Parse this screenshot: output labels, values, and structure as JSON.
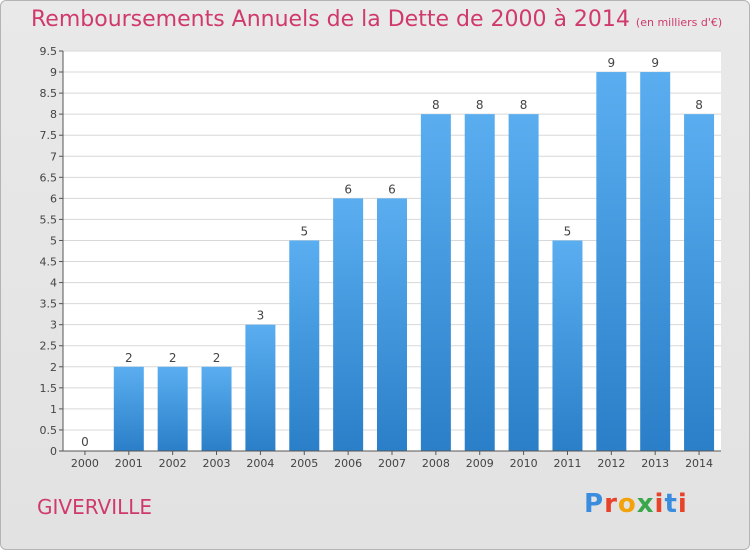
{
  "title": "Remboursements Annuels de la Dette de 2000 à 2014",
  "subtitle": "(en milliers d'€)",
  "commune": "GIVERVILLE",
  "logo": {
    "letters": [
      "P",
      "r",
      "o",
      "x",
      "i",
      "t",
      "i"
    ],
    "colors": [
      "#3a8dde",
      "#e8422a",
      "#f2a20a",
      "#3aa84a",
      "#e8422a",
      "#3a8dde",
      "#e8422a"
    ]
  },
  "colors": {
    "bar_top": "#5aaef0",
    "bar_bottom": "#2a7fc8",
    "title": "#d03a6a"
  },
  "chart_data": {
    "type": "bar",
    "categories": [
      "2000",
      "2001",
      "2002",
      "2003",
      "2004",
      "2005",
      "2006",
      "2007",
      "2008",
      "2009",
      "2010",
      "2011",
      "2012",
      "2013",
      "2014"
    ],
    "values": [
      0,
      2,
      2,
      2,
      3,
      5,
      6,
      6,
      8,
      8,
      8,
      5,
      9,
      9,
      8
    ],
    "data_labels": [
      "0",
      "2",
      "2",
      "2",
      "3",
      "5",
      "6",
      "6",
      "8",
      "8",
      "8",
      "5",
      "9",
      "9",
      "8"
    ],
    "ylim": [
      0,
      9.5
    ],
    "yticks": [
      "0",
      "0.5",
      "1",
      "1.5",
      "2",
      "2.5",
      "3",
      "3.5",
      "4",
      "4.5",
      "5",
      "5.5",
      "6",
      "6.5",
      "7",
      "7.5",
      "8",
      "8.5",
      "9",
      "9.5"
    ],
    "ytick_values": [
      0,
      0.5,
      1,
      1.5,
      2,
      2.5,
      3,
      3.5,
      4,
      4.5,
      5,
      5.5,
      6,
      6.5,
      7,
      7.5,
      8,
      8.5,
      9,
      9.5
    ],
    "grid": true
  }
}
